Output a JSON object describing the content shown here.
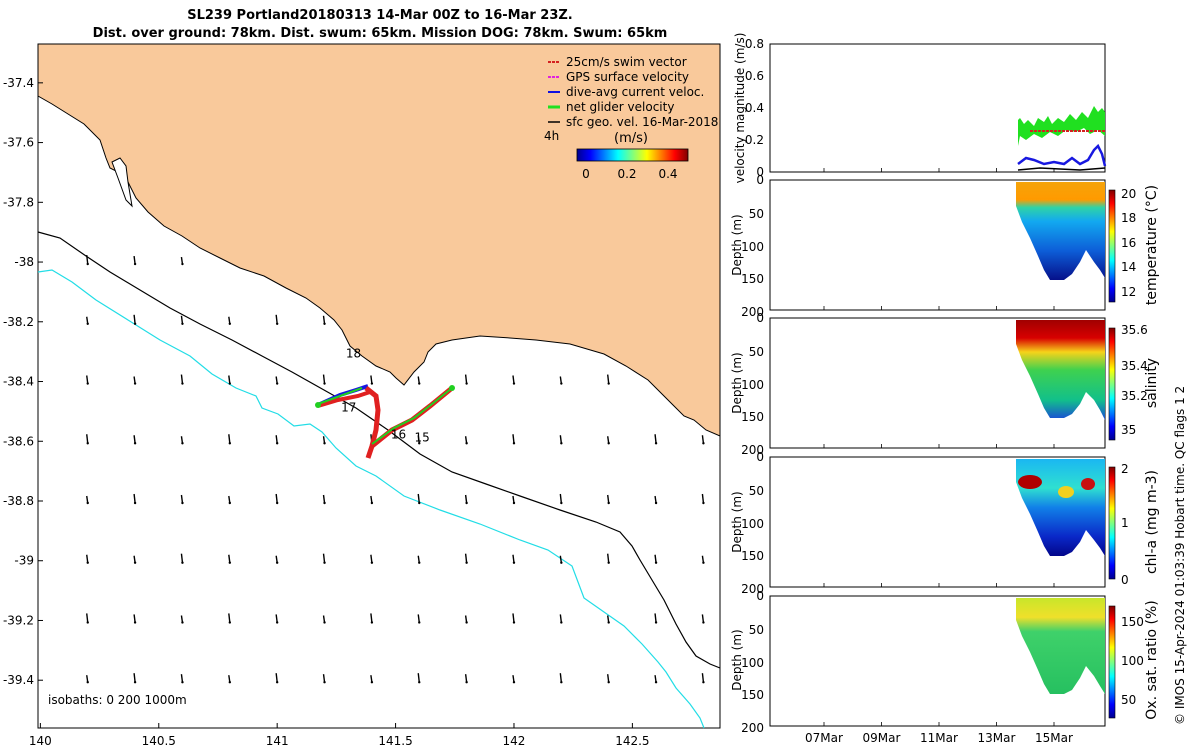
{
  "title": {
    "line1": "SL239 Portland20180313 14-Mar 00Z to 16-Mar 23Z.",
    "line2": "Dist. over ground: 78km. Dist. swum: 65km. Mission DOG: 78km. Swum: 65km"
  },
  "map": {
    "x_ticks": [
      "140",
      "140.5",
      "141",
      "141.5",
      "142",
      "142.5"
    ],
    "y_ticks": [
      "-37.4",
      "-37.6",
      "-37.8",
      "-38",
      "-38.2",
      "-38.4",
      "-38.6",
      "-38.8",
      "-39",
      "-39.2",
      "-39.4"
    ],
    "xlim": [
      139.99,
      142.87
    ],
    "ylim": [
      -39.56,
      -37.27
    ],
    "isobaths_label": "isobaths: 0   200  1000m",
    "interval_label": "4h",
    "colorbar_title": "(m/s)",
    "colorbar_ticks": [
      "0",
      "0.2",
      "0.4"
    ],
    "day_labels": [
      {
        "text": "18",
        "lon": 141.29,
        "lat": -38.32
      },
      {
        "text": "17",
        "lon": 141.27,
        "lat": -38.5
      },
      {
        "text": "16",
        "lon": 141.48,
        "lat": -38.59
      },
      {
        "text": "15",
        "lon": 141.58,
        "lat": -38.6
      }
    ],
    "legend": [
      {
        "label": "25cm/s swim vector",
        "color": "#d42020"
      },
      {
        "label": "GPS surface velocity",
        "color": "#e020e0"
      },
      {
        "label": "dive-avg current veloc.",
        "color": "#1010e0"
      },
      {
        "label": "net glider velocity",
        "color": "#20e020"
      },
      {
        "label": "sfc geo. vel. 16-Mar-2018",
        "color": "#000000"
      }
    ]
  },
  "colors": {
    "land": "#f9c99b",
    "isobath_200": "#000000",
    "isobath_1000": "#22dde6",
    "track_red": "#e02020",
    "track_blue": "#1818e0",
    "track_green": "#20d020"
  },
  "time_axis": {
    "ticks": [
      "07Mar",
      "09Mar",
      "11Mar",
      "13Mar",
      "15Mar"
    ]
  },
  "panels": {
    "velocity": {
      "ylabel": "velocity magnitude (m/s)",
      "yticks": [
        "0",
        "0.2",
        "0.4",
        "0.6",
        "0.8"
      ]
    },
    "temperature": {
      "ylabel": "Depth (m)",
      "yticks": [
        "0",
        "50",
        "100",
        "150",
        "200"
      ],
      "cb_label": "temperature (°C)",
      "cb_ticks": [
        "20",
        "18",
        "16",
        "14",
        "12"
      ]
    },
    "salinity": {
      "ylabel": "Depth (m)",
      "yticks": [
        "0",
        "50",
        "100",
        "150",
        "200"
      ],
      "cb_label": "salinity",
      "cb_ticks": [
        "35.6",
        "35.4",
        "35.2",
        "35"
      ]
    },
    "chla": {
      "ylabel": "Depth (m)",
      "yticks": [
        "0",
        "50",
        "100",
        "150",
        "200"
      ],
      "cb_label": "chl-a (mg m-3)",
      "cb_ticks": [
        "2",
        "1",
        "0"
      ]
    },
    "oxygen": {
      "ylabel": "Depth (m)",
      "yticks": [
        "0",
        "50",
        "100",
        "150",
        "200"
      ],
      "cb_label": "Ox. sat. ratio (%)",
      "cb_ticks": [
        "150",
        "100",
        "50"
      ]
    }
  },
  "credit": "© IMOS 15-Apr-2024 01:03:39 Hobart time. QC flags 1  2",
  "chart_data": [
    {
      "type": "line",
      "title": "",
      "xlabel": "",
      "ylabel": "velocity magnitude (m/s)",
      "x": [
        "07Mar",
        "09Mar",
        "11Mar",
        "13Mar",
        "15Mar"
      ],
      "ylim": [
        0,
        0.8
      ],
      "series": [
        {
          "values_approx": "net glider velocity ~0.25-0.43 during 13.6-17 Mar"
        },
        {
          "values_approx": "swim vector ~0.25 during 13.6-17 Mar"
        },
        {
          "values_approx": "dive-avg current ~0.02-0.15 during 13.6-17 Mar"
        }
      ]
    },
    {
      "type": "heatmap",
      "ylabel": "Depth (m)",
      "colorbar": "temperature (°C)",
      "ylim": [
        200,
        0
      ],
      "clim": [
        11,
        20.5
      ],
      "x": [
        "07Mar",
        "09Mar",
        "11Mar",
        "13Mar",
        "15Mar"
      ]
    },
    {
      "type": "heatmap",
      "ylabel": "Depth (m)",
      "colorbar": "salinity",
      "ylim": [
        200,
        0
      ],
      "clim": [
        34.9,
        35.6
      ],
      "x": [
        "07Mar",
        "09Mar",
        "11Mar",
        "13Mar",
        "15Mar"
      ]
    },
    {
      "type": "heatmap",
      "ylabel": "Depth (m)",
      "colorbar": "chl-a (mg m-3)",
      "ylim": [
        200,
        0
      ],
      "clim": [
        0,
        2
      ],
      "x": [
        "07Mar",
        "09Mar",
        "11Mar",
        "13Mar",
        "15Mar"
      ]
    },
    {
      "type": "heatmap",
      "ylabel": "Depth (m)",
      "colorbar": "Ox. sat. ratio (%)",
      "ylim": [
        200,
        0
      ],
      "clim": [
        20,
        175
      ],
      "x": [
        "07Mar",
        "09Mar",
        "11Mar",
        "13Mar",
        "15Mar"
      ]
    }
  ]
}
